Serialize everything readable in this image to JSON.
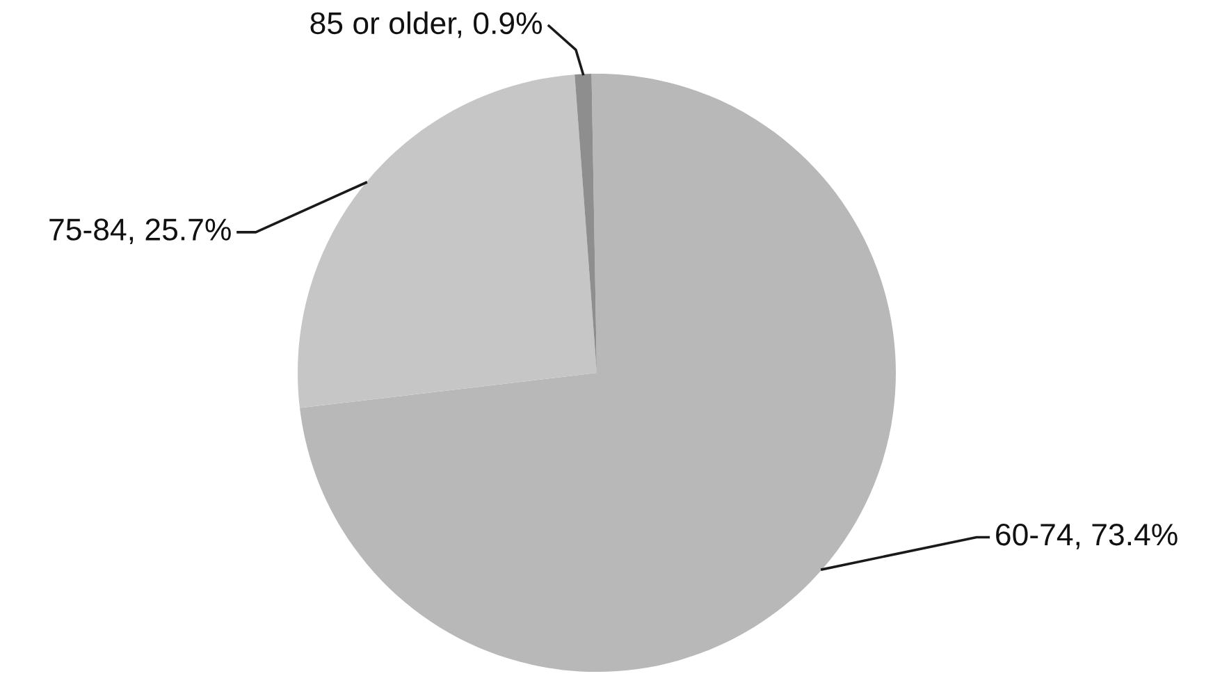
{
  "chart_data": {
    "type": "pie",
    "categories": [
      "60-74",
      "75-84",
      "85 or older"
    ],
    "values": [
      73.4,
      25.7,
      0.9
    ],
    "colors": [
      "#b8b8b8",
      "#c6c6c6",
      "#8e8e8e"
    ],
    "value_labels": [
      "73.4%",
      "25.7%",
      "0.9%"
    ]
  }
}
